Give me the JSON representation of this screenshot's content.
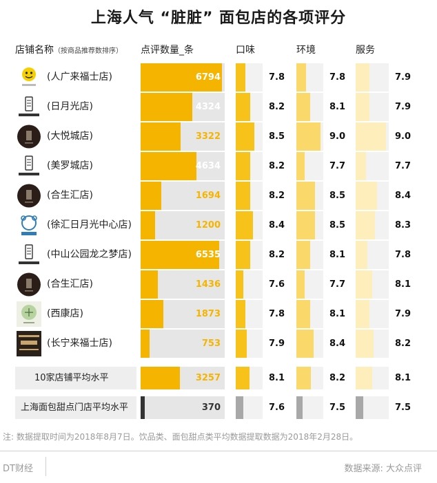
{
  "title": "上海人气 “脏脏” 面包店的各项评分",
  "headers": {
    "store": "店铺名称",
    "store_sub": "（按商品推荐数排序）",
    "reviews": "点评数量_条",
    "taste": "口味",
    "env": "环境",
    "service": "服务"
  },
  "colors": {
    "review_bar": "#f5b400",
    "review_text_light": "#ffffff",
    "review_text_dark": "#f5b400",
    "taste": "#f7c21a",
    "env": "#fad96a",
    "service": "#fdeebb",
    "platform_bar": "#333333",
    "platform_score": "#a8a8a8"
  },
  "chart_data": {
    "type": "bar",
    "categories": [
      "(人广来福士店)",
      "(日月光店)",
      "(大悦城店)",
      "(美罗城店)",
      "(合生汇店)",
      "(徐汇日月光中心店)",
      "(中山公园龙之梦店)",
      "(合生汇店)",
      "(西康店)",
      "(长宁来福士店)"
    ],
    "logos": [
      "7-dollar-logo",
      "lelecha-logo",
      "round-dark-logo",
      "lelecha-logo",
      "round-dark-logo",
      "bear-blue-logo",
      "lelecha-logo",
      "round-dark-logo",
      "green-circle-logo",
      "honeybeast-logo"
    ],
    "series": [
      {
        "name": "点评数量_条",
        "values": [
          6794,
          4324,
          3322,
          4634,
          1694,
          1200,
          6535,
          1436,
          1873,
          753
        ]
      },
      {
        "name": "口味",
        "values": [
          7.8,
          8.2,
          8.5,
          8.2,
          8.2,
          8.4,
          8.2,
          7.6,
          7.8,
          7.9
        ]
      },
      {
        "name": "环境",
        "values": [
          7.8,
          8.1,
          9.0,
          7.7,
          8.5,
          8.5,
          8.1,
          7.7,
          8.1,
          8.4
        ]
      },
      {
        "name": "服务",
        "values": [
          7.9,
          7.9,
          9.0,
          7.7,
          8.4,
          8.3,
          7.8,
          8.1,
          7.9,
          8.2
        ]
      }
    ],
    "averages": [
      {
        "label": "10家店铺平均水平",
        "reviews": 3257,
        "taste": 8.1,
        "env": 8.2,
        "service": 8.1
      },
      {
        "label": "上海面包甜点门店平均水平",
        "reviews": 370,
        "taste": 7.6,
        "env": 7.5,
        "service": 7.5
      }
    ],
    "review_max": 7000,
    "score_range": [
      7.0,
      9.2
    ]
  },
  "note": "注: 数据提取时间为2018年8月7日。饮品类、面包甜点类平均数据提取数据为2018年2月28日。",
  "footer": {
    "left": "DT财经",
    "right": "数据来源: 大众点评"
  }
}
